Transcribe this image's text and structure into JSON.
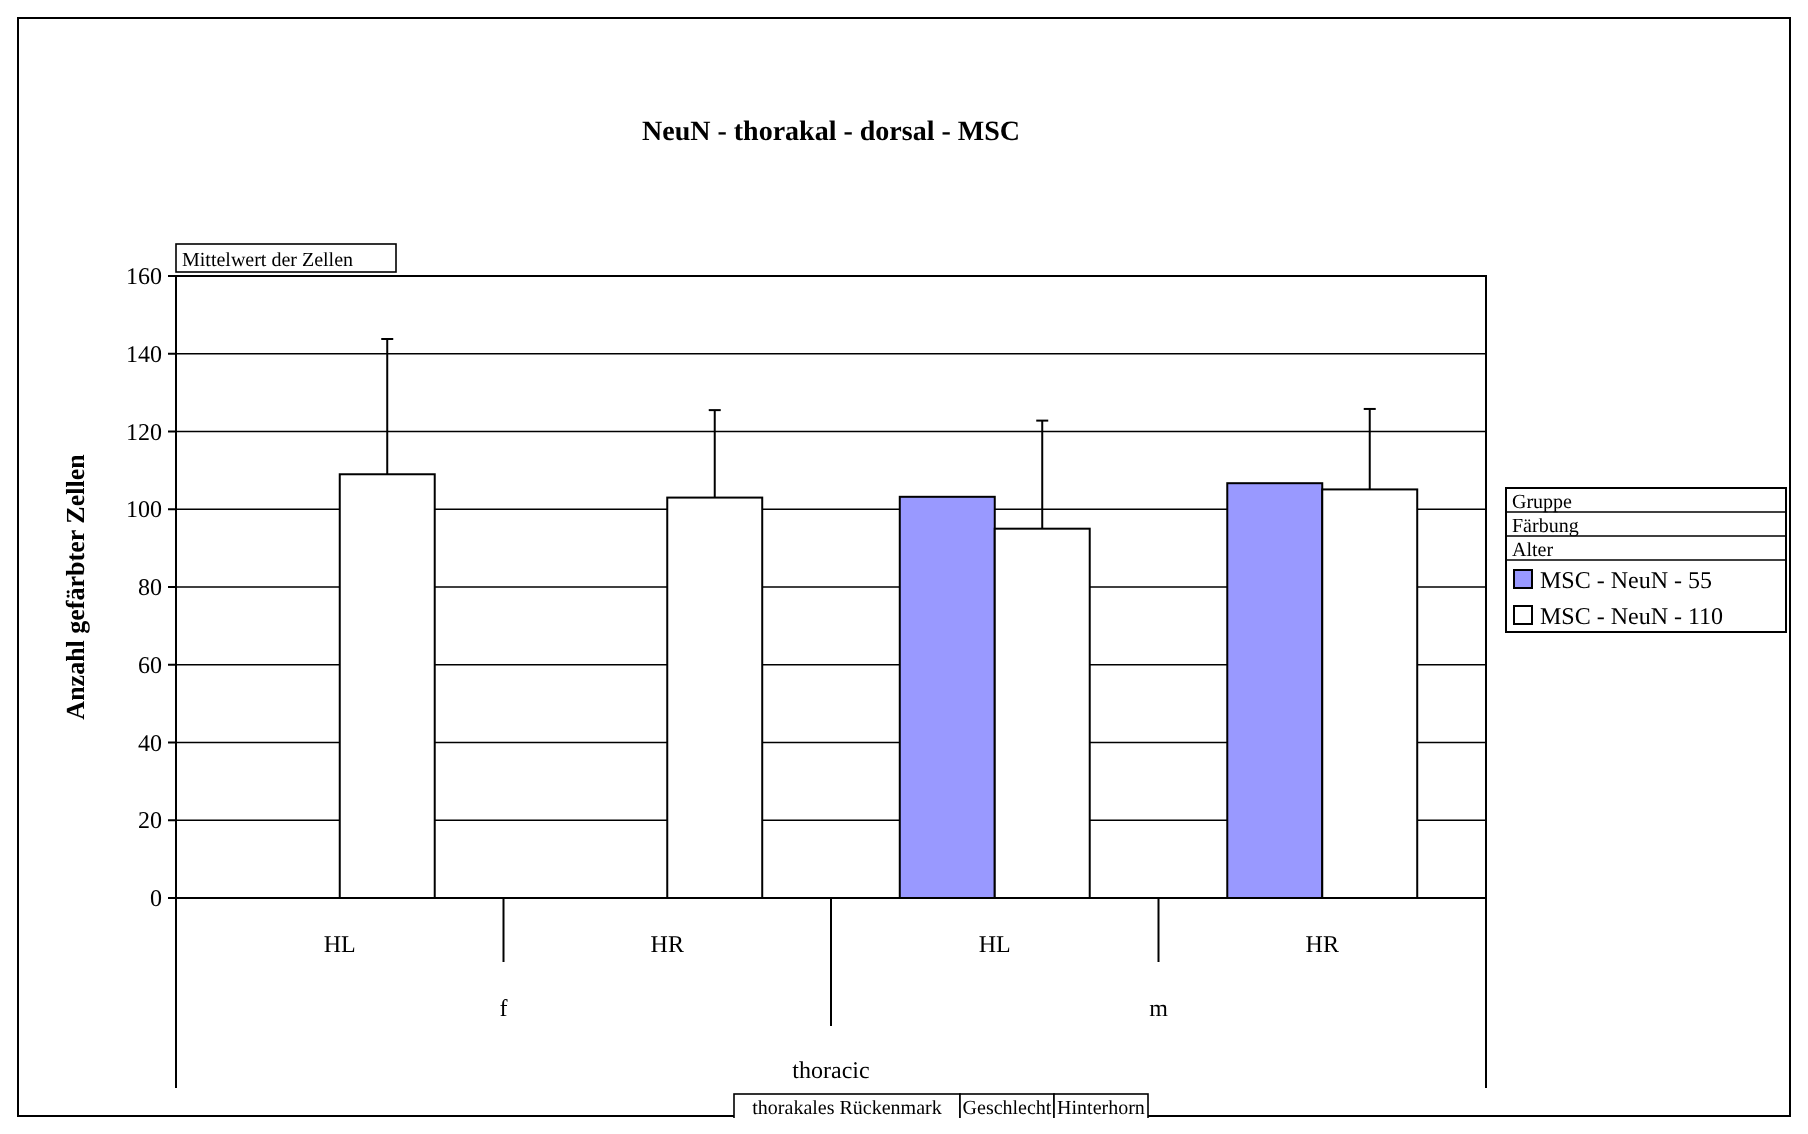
{
  "chart_data": {
    "type": "bar",
    "title": "NeuN - thorakal - dorsal - MSC",
    "ylabel": "Anzahl gefärbter Zellen",
    "categories": [
      "HL",
      "HR",
      "HL",
      "HR"
    ],
    "series": [
      {
        "name": "MSC - NeuN - 55",
        "color": "#9999ff",
        "values": [
          null,
          null,
          103.2,
          106.7
        ],
        "errors": [
          null,
          null,
          null,
          null
        ]
      },
      {
        "name": "MSC - NeuN - 110",
        "color": "#ffffff",
        "values": [
          109,
          103,
          95,
          105.1
        ],
        "errors": [
          [
            109,
            143.8
          ],
          [
            103,
            125.5
          ],
          [
            95,
            122.8
          ],
          [
            105.1,
            125.8
          ]
        ]
      }
    ],
    "annotations": [
      "f",
      "m",
      "thoracic",
      "Mittelwert der Zellen",
      "Gruppe",
      "Färbung",
      "Alter",
      "thorakales Rückenmark",
      "Geschlecht",
      "Hinterhorn"
    ],
    "ylim": [
      0,
      160
    ],
    "yticks": [
      0,
      20,
      40,
      60,
      80,
      100,
      120,
      140,
      160
    ],
    "grid": "y",
    "legend": "right"
  }
}
